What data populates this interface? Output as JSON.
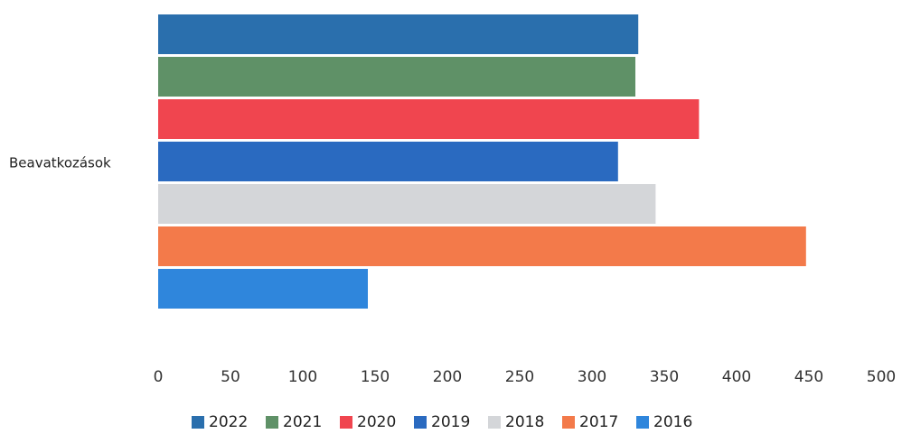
{
  "chart_data": {
    "type": "bar",
    "orientation": "horizontal",
    "categories": [
      "Beavatkozások"
    ],
    "series": [
      {
        "name": "2022",
        "values": [
          332
        ],
        "color": "#2a6fad"
      },
      {
        "name": "2021",
        "values": [
          330
        ],
        "color": "#5f9167"
      },
      {
        "name": "2020",
        "values": [
          374
        ],
        "color": "#f0454f"
      },
      {
        "name": "2019",
        "values": [
          318
        ],
        "color": "#2a6ac0"
      },
      {
        "name": "2018",
        "values": [
          344
        ],
        "color": "#d4d6d9"
      },
      {
        "name": "2017",
        "values": [
          448
        ],
        "color": "#f37a4a"
      },
      {
        "name": "2016",
        "values": [
          145
        ],
        "color": "#2f86dc"
      }
    ],
    "xticks": [
      "0",
      "50",
      "100",
      "150",
      "200",
      "250",
      "300",
      "350",
      "400",
      "450",
      "500"
    ],
    "xlim": [
      0,
      500
    ],
    "title": "",
    "xlabel": "",
    "ylabel": "",
    "grid": false,
    "legend_position": "bottom"
  }
}
